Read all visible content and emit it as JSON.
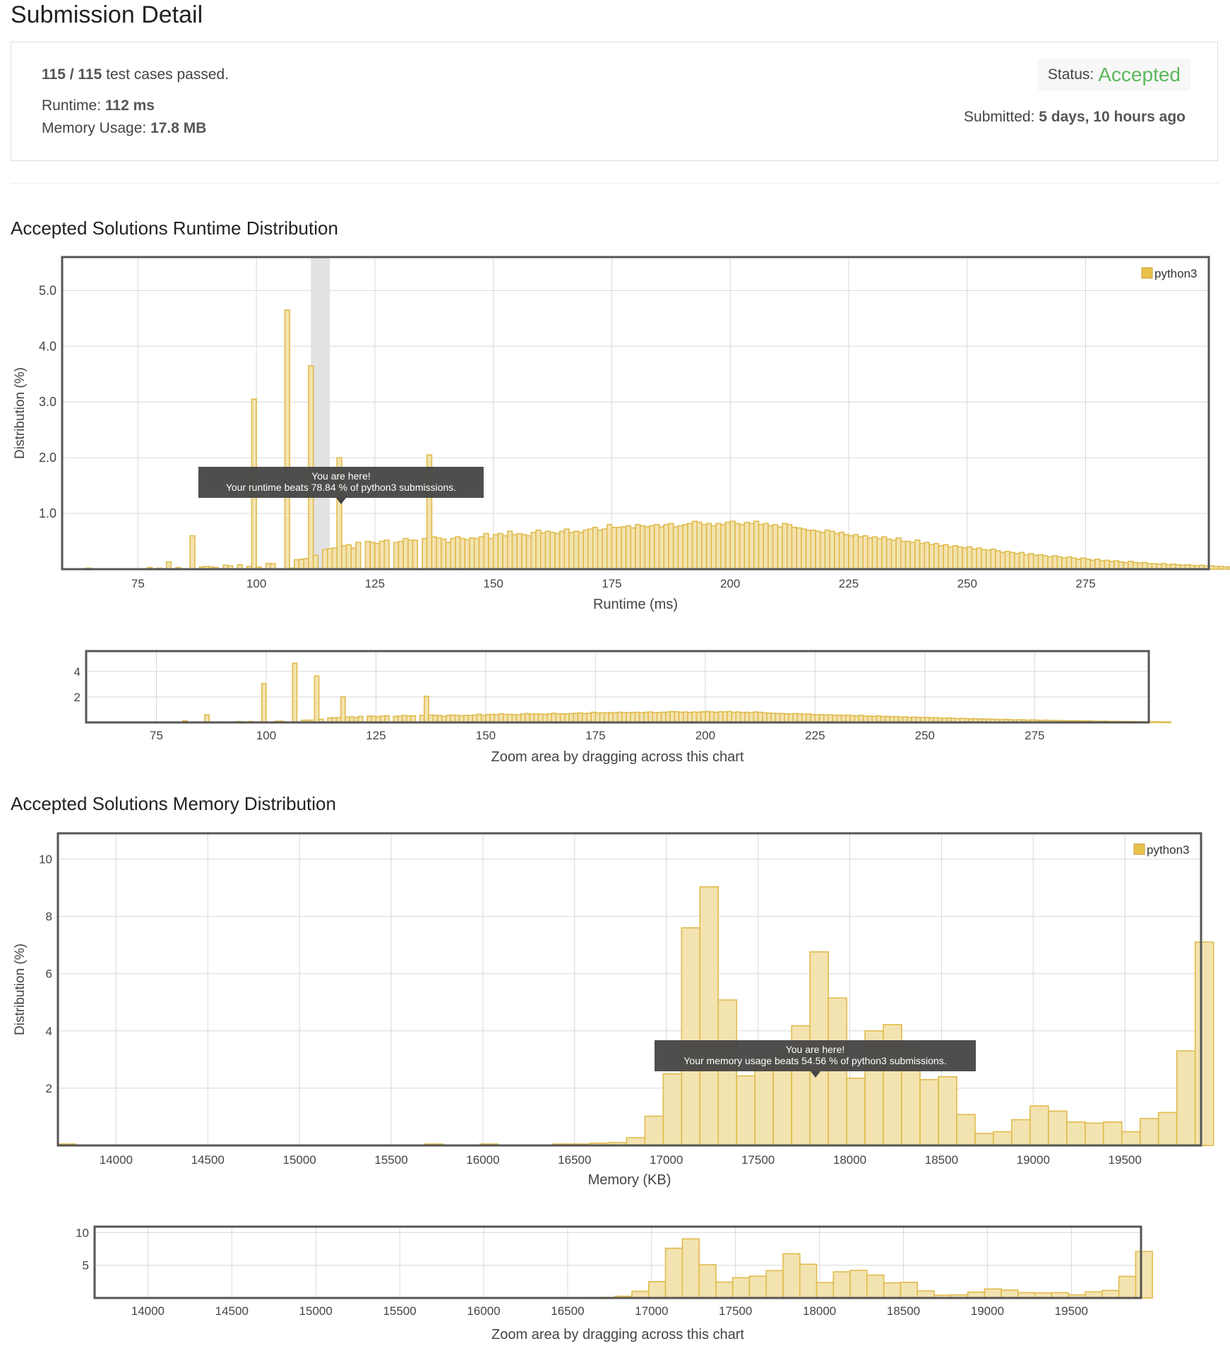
{
  "page": {
    "title": "Submission Detail",
    "cases_passed": "115 / 115",
    "cases_suffix": "test cases passed.",
    "runtime_label": "Runtime:",
    "runtime_value": "112 ms",
    "memory_label": "Memory Usage:",
    "memory_value": "17.8 MB",
    "status_label": "Status:",
    "status_value": "Accepted",
    "submitted_label": "Submitted:",
    "submitted_value": "5 days, 10 hours ago"
  },
  "colors": {
    "bar_fill": "#f3e3b0",
    "bar_stroke": "#e0bb4c",
    "legend": "#e8c04c",
    "accepted": "#5cb85c",
    "tooltip": "#444444"
  },
  "chart_data": [
    {
      "type": "bar",
      "title": "Accepted Solutions Runtime Distribution",
      "xlabel": "Runtime (ms)",
      "ylabel": "Distribution (%)",
      "xlim": [
        59,
        301
      ],
      "ylim": [
        0,
        5.6
      ],
      "xticks": [
        "75",
        "100",
        "125",
        "150",
        "175",
        "200",
        "225",
        "250",
        "275"
      ],
      "xtick_values": [
        75,
        100,
        125,
        150,
        175,
        200,
        225,
        250,
        275
      ],
      "yticks": [
        "1.0",
        "2.0",
        "3.0",
        "4.0",
        "5.0"
      ],
      "ytick_values": [
        1,
        2,
        3,
        4,
        5
      ],
      "bin_start": 64,
      "bin_width": 1,
      "series": [
        {
          "name": "python3",
          "values": [
            0.02,
            0,
            0,
            0,
            0,
            0,
            0,
            0,
            0,
            0,
            0,
            0,
            0,
            0.03,
            0,
            0.02,
            0,
            0.13,
            0,
            0.03,
            0,
            0,
            0.6,
            0,
            0.04,
            0.05,
            0.04,
            0.03,
            0,
            0.07,
            0.06,
            0,
            0.08,
            0,
            0.05,
            3.05,
            0.04,
            0.01,
            0.1,
            0.1,
            0,
            0,
            4.65,
            0.02,
            0.17,
            0.18,
            0.19,
            3.65,
            0.25,
            0,
            0.35,
            0.37,
            0.38,
            2.0,
            0.42,
            0.44,
            0.38,
            0.48,
            0,
            0.5,
            0.48,
            0.46,
            0.5,
            0.52,
            0,
            0.48,
            0.5,
            0.55,
            0.52,
            0.52,
            0,
            0.55,
            2.05,
            0.58,
            0.56,
            0.54,
            0.48,
            0.55,
            0.58,
            0.55,
            0.53,
            0.56,
            0.55,
            0.58,
            0.64,
            0.55,
            0.62,
            0.64,
            0.6,
            0.68,
            0.62,
            0.64,
            0.62,
            0.6,
            0.66,
            0.7,
            0.65,
            0.68,
            0.66,
            0.64,
            0.68,
            0.72,
            0.66,
            0.68,
            0.66,
            0.7,
            0.72,
            0.75,
            0.7,
            0.72,
            0.8,
            0.75,
            0.75,
            0.76,
            0.78,
            0.74,
            0.8,
            0.78,
            0.76,
            0.78,
            0.8,
            0.76,
            0.8,
            0.82,
            0.76,
            0.78,
            0.8,
            0.82,
            0.86,
            0.84,
            0.8,
            0.82,
            0.78,
            0.82,
            0.8,
            0.84,
            0.86,
            0.82,
            0.8,
            0.84,
            0.82,
            0.86,
            0.8,
            0.82,
            0.78,
            0.8,
            0.76,
            0.82,
            0.8,
            0.75,
            0.74,
            0.72,
            0.7,
            0.7,
            0.68,
            0.66,
            0.7,
            0.68,
            0.64,
            0.66,
            0.62,
            0.6,
            0.62,
            0.58,
            0.6,
            0.56,
            0.58,
            0.55,
            0.58,
            0.54,
            0.52,
            0.56,
            0.5,
            0.5,
            0.48,
            0.52,
            0.46,
            0.48,
            0.44,
            0.46,
            0.42,
            0.44,
            0.4,
            0.42,
            0.4,
            0.38,
            0.4,
            0.36,
            0.38,
            0.35,
            0.34,
            0.36,
            0.33,
            0.3,
            0.32,
            0.3,
            0.28,
            0.3,
            0.26,
            0.28,
            0.25,
            0.26,
            0.24,
            0.22,
            0.24,
            0.22,
            0.2,
            0.22,
            0.2,
            0.18,
            0.2,
            0.18,
            0.16,
            0.18,
            0.15,
            0.16,
            0.14,
            0.15,
            0.13,
            0.12,
            0.14,
            0.12,
            0.11,
            0.12,
            0.1,
            0.1,
            0.09,
            0.1,
            0.08,
            0.09,
            0.08,
            0.07,
            0.08,
            0.07,
            0.06,
            0.07,
            0.06,
            0.06,
            0.05,
            0.05,
            0.04,
            0.04
          ]
        }
      ],
      "legend": {
        "label": "python3",
        "position": "top-right"
      },
      "highlight": {
        "x": 112
      },
      "tooltip": {
        "line1": "You are here!",
        "line2": "Your runtime beats 78.84 % of python3 submissions."
      }
    },
    {
      "type": "bar",
      "title": "",
      "xlabel": "Zoom area by dragging across this chart",
      "ylabel": "",
      "xlim": [
        59,
        301
      ],
      "ylim": [
        0,
        5.6
      ],
      "xticks": [
        "75",
        "100",
        "125",
        "150",
        "175",
        "200",
        "225",
        "250",
        "275"
      ],
      "xtick_values": [
        75,
        100,
        125,
        150,
        175,
        200,
        225,
        250,
        275
      ],
      "yticks": [
        "2",
        "4"
      ],
      "ytick_values": [
        2,
        4
      ],
      "series_ref": 0
    },
    {
      "type": "bar",
      "title": "Accepted Solutions Memory Distribution",
      "xlabel": "Memory (KB)",
      "ylabel": "Distribution (%)",
      "xlim": [
        13683,
        19915
      ],
      "ylim": [
        0,
        10.9
      ],
      "xticks": [
        "14000",
        "14500",
        "15000",
        "15500",
        "16000",
        "16500",
        "17000",
        "17500",
        "18000",
        "18500",
        "19000",
        "19500"
      ],
      "xtick_values": [
        14000,
        14500,
        15000,
        15500,
        16000,
        16500,
        17000,
        17500,
        18000,
        18500,
        19000,
        19500
      ],
      "yticks": [
        "2",
        "4",
        "6",
        "8",
        "10"
      ],
      "ytick_values": [
        2,
        4,
        6,
        8,
        10
      ],
      "bin_start": 13683,
      "bin_width": 100,
      "series": [
        {
          "name": "python3",
          "values": [
            0.05,
            0,
            0,
            0,
            0,
            0,
            0,
            0,
            0,
            0,
            0,
            0,
            0,
            0,
            0,
            0,
            0,
            0,
            0,
            0,
            0.05,
            0,
            0,
            0.05,
            0,
            0,
            0,
            0.05,
            0.05,
            0.08,
            0.1,
            0.27,
            1.02,
            2.5,
            7.6,
            9.03,
            5.08,
            2.43,
            3.1,
            3.33,
            4.18,
            6.76,
            5.15,
            2.35,
            4.0,
            4.22,
            3.5,
            2.3,
            2.4,
            1.08,
            0.42,
            0.48,
            0.9,
            1.38,
            1.2,
            0.82,
            0.78,
            0.82,
            0.48,
            0.94,
            1.15,
            3.3,
            7.1
          ]
        }
      ],
      "legend": {
        "label": "python3",
        "position": "top-right"
      },
      "tooltip": {
        "line1": "You are here!",
        "line2": "Your memory usage beats 54.56 % of python3 submissions."
      }
    },
    {
      "type": "bar",
      "title": "",
      "xlabel": "Zoom area by dragging across this chart",
      "ylabel": "",
      "xlim": [
        13683,
        19915
      ],
      "ylim": [
        0,
        10.9
      ],
      "xticks": [
        "14000",
        "14500",
        "15000",
        "15500",
        "16000",
        "16500",
        "17000",
        "17500",
        "18000",
        "18500",
        "19000",
        "19500"
      ],
      "xtick_values": [
        14000,
        14500,
        15000,
        15500,
        16000,
        16500,
        17000,
        17500,
        18000,
        18500,
        19000,
        19500
      ],
      "yticks": [
        "5",
        "10"
      ],
      "ytick_values": [
        5,
        10
      ],
      "series_ref": 2
    }
  ]
}
